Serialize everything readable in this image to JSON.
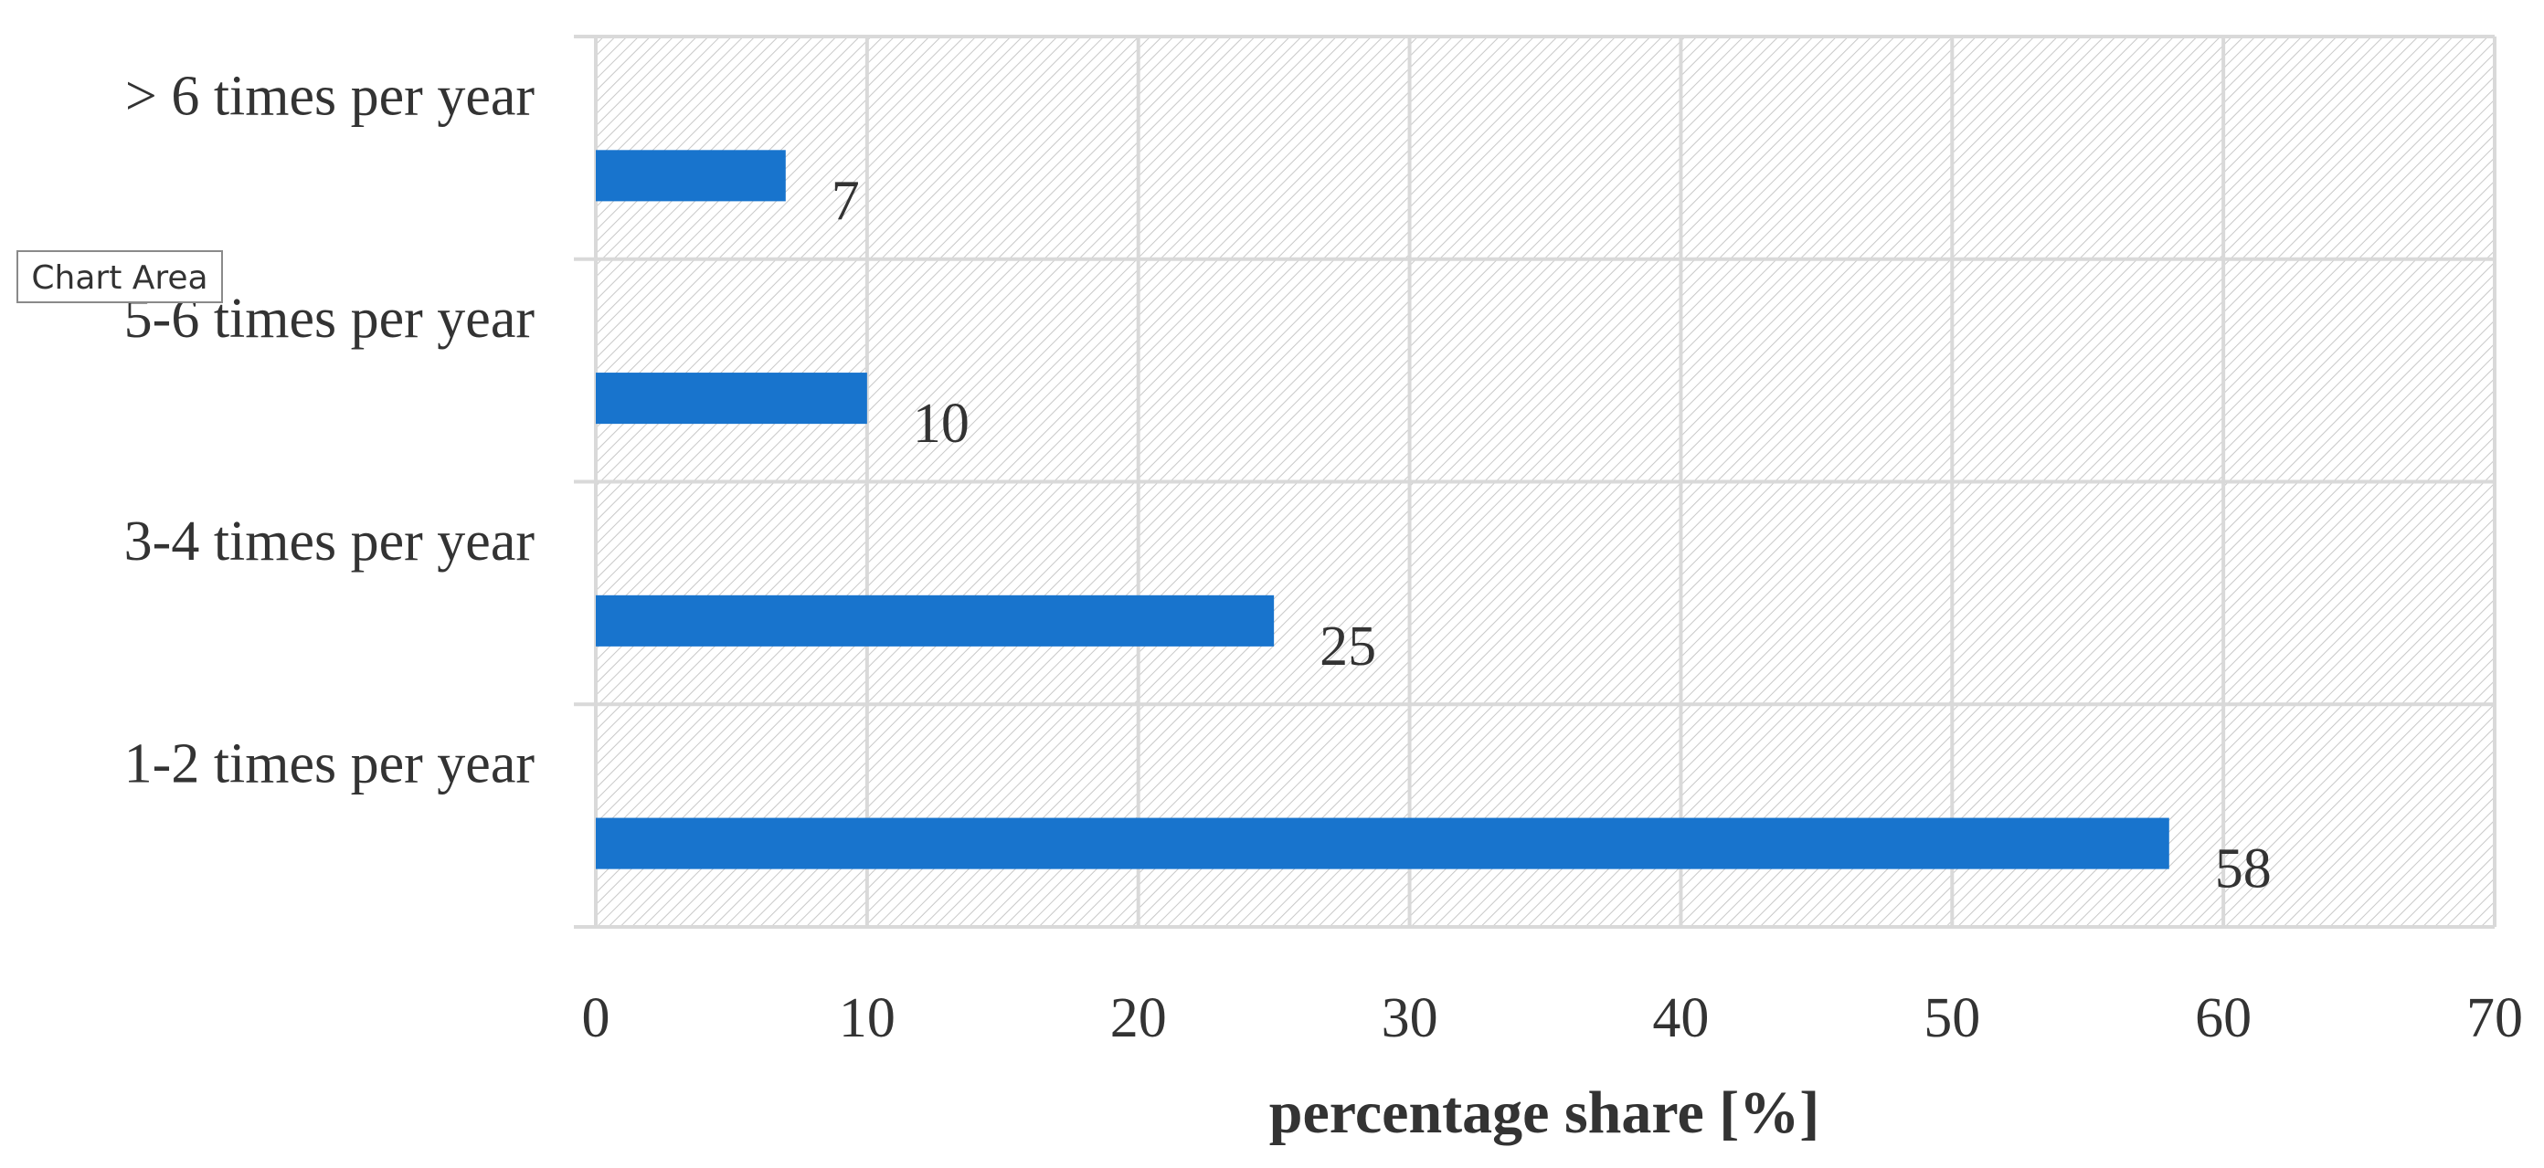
{
  "tooltip": {
    "label": "Chart Area"
  },
  "chart_data": {
    "type": "bar",
    "orientation": "horizontal",
    "categories": [
      "1-2 times per year",
      "3-4 times per year",
      "5-6 times per year",
      "> 6 times per year"
    ],
    "values": [
      58,
      25,
      10,
      7
    ],
    "data_labels": [
      "58",
      "25",
      "10",
      "7"
    ],
    "xlabel": "percentage share [%]",
    "ylabel": "",
    "xlim": [
      0,
      70
    ],
    "xticks": [
      0,
      10,
      20,
      30,
      40,
      50,
      60,
      70
    ],
    "xtick_labels": [
      "0",
      "10",
      "20",
      "30",
      "40",
      "50",
      "60",
      "70"
    ],
    "grid": true,
    "legend": "none",
    "colors": {
      "bar": "#1874CD",
      "grid": "#d9d9d9",
      "hatch": "#c8c8c8"
    }
  }
}
